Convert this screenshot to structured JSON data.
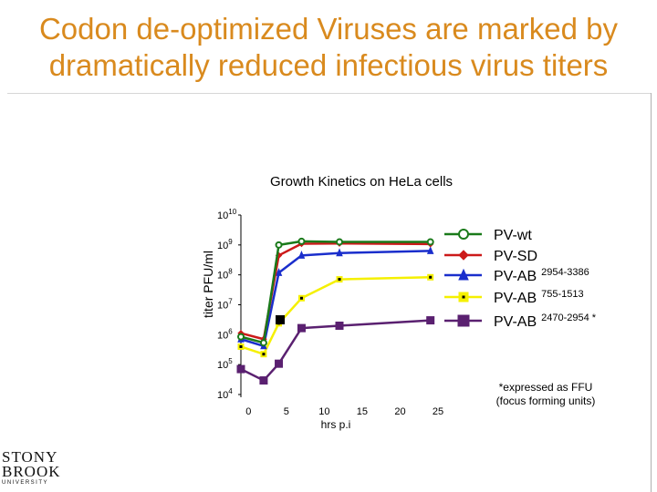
{
  "slide": {
    "title_line1": "Codon de-optimized Viruses are marked by",
    "title_line2": "dramatically reduced infectious virus titers"
  },
  "logo": {
    "line1": "STONY",
    "line2": "BROOK",
    "line3": "UNIVERSITY"
  },
  "colors": {
    "title": "#d98a1e",
    "pv_wt": "#1a7a1a",
    "pv_sd": "#cc1a1a",
    "pv_ab_2954": "#1a2ecc",
    "pv_ab_755": "#f5f000",
    "pv_ab_2470": "#5a2070"
  },
  "chart_data": {
    "type": "line",
    "title": "Growth Kinetics on HeLa cells",
    "xlabel": "hrs p.i",
    "ylabel": "titer PFU/ml",
    "xlim": [
      -1,
      25
    ],
    "ylim_log10": [
      4,
      10
    ],
    "x_ticks": [
      "0",
      "5",
      "10",
      "15",
      "20",
      "25"
    ],
    "x_tick_values": [
      0,
      5,
      10,
      15,
      20,
      25
    ],
    "y_ticks": [
      {
        "base": "10",
        "exp": "10",
        "value": 10
      },
      {
        "base": "10",
        "exp": "9",
        "value": 9
      },
      {
        "base": "10",
        "exp": "8",
        "value": 8
      },
      {
        "base": "10",
        "exp": "7",
        "value": 7
      },
      {
        "base": "10",
        "exp": "6",
        "value": 6
      },
      {
        "base": "10",
        "exp": "5",
        "value": 5
      },
      {
        "base": "10",
        "exp": "4",
        "value": 4
      }
    ],
    "series": [
      {
        "name": "PV-wt",
        "superscript": "",
        "color": "#1a7a1a",
        "marker": "circle",
        "x": [
          -1,
          2,
          4,
          7,
          12,
          24
        ],
        "log10_values": [
          5.93,
          5.73,
          9.0,
          9.12,
          9.1,
          9.1
        ]
      },
      {
        "name": "PV-SD",
        "superscript": "",
        "color": "#cc1a1a",
        "marker": "diamond",
        "x": [
          -1,
          2,
          4,
          7,
          12,
          24
        ],
        "log10_values": [
          6.05,
          5.85,
          8.65,
          9.04,
          9.05,
          9.03
        ]
      },
      {
        "name": "PV-AB",
        "superscript": "2954-3386",
        "color": "#1a2ecc",
        "marker": "triangle",
        "x": [
          -1,
          2,
          4,
          7,
          12,
          24
        ],
        "log10_values": [
          5.85,
          5.62,
          8.07,
          8.65,
          8.73,
          8.8
        ]
      },
      {
        "name": "PV-AB",
        "superscript": "755-1513",
        "color": "#f5f000",
        "marker": "square",
        "x": [
          -1,
          2,
          4,
          7,
          12,
          24
        ],
        "log10_values": [
          5.6,
          5.35,
          6.38,
          7.22,
          7.85,
          7.92
        ]
      },
      {
        "name": "PV-AB",
        "superscript": "2470-2954 *",
        "color": "#5a2070",
        "marker": "square",
        "x": [
          -1,
          2,
          4,
          7,
          12,
          24
        ],
        "log10_values": [
          4.85,
          4.47,
          5.03,
          6.22,
          6.3,
          6.48
        ]
      }
    ],
    "annotation": "*expressed as FFU\n(focus forming units)",
    "legend_position": "right"
  }
}
